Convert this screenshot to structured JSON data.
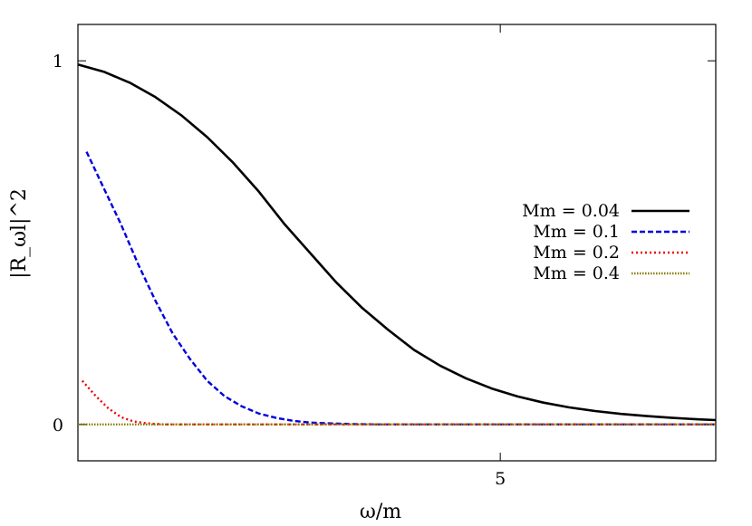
{
  "chart_data": {
    "type": "line",
    "xlabel": "ω/m",
    "ylabel": "|R_ωl|^2",
    "xlim": [
      0.1,
      7.5
    ],
    "ylim": [
      -0.1,
      1.1
    ],
    "xticks": [
      {
        "value": 5,
        "label": "5"
      }
    ],
    "yticks": [
      {
        "value": 0,
        "label": "0"
      },
      {
        "value": 1,
        "label": "1"
      }
    ],
    "grid": false,
    "legend_position": "right",
    "series": [
      {
        "name": "Mm = 0.04",
        "color": "#000000",
        "dash": "solid",
        "points": [
          [
            0.1,
            0.99
          ],
          [
            0.4,
            0.97
          ],
          [
            0.7,
            0.94
          ],
          [
            1.0,
            0.9
          ],
          [
            1.3,
            0.85
          ],
          [
            1.6,
            0.79
          ],
          [
            1.9,
            0.72
          ],
          [
            2.2,
            0.64
          ],
          [
            2.5,
            0.55
          ],
          [
            2.8,
            0.47
          ],
          [
            3.1,
            0.39
          ],
          [
            3.4,
            0.32
          ],
          [
            3.7,
            0.26
          ],
          [
            4.0,
            0.205
          ],
          [
            4.3,
            0.162
          ],
          [
            4.6,
            0.127
          ],
          [
            4.9,
            0.099
          ],
          [
            5.2,
            0.077
          ],
          [
            5.5,
            0.06
          ],
          [
            5.8,
            0.047
          ],
          [
            6.1,
            0.037
          ],
          [
            6.4,
            0.029
          ],
          [
            6.7,
            0.023
          ],
          [
            7.0,
            0.018
          ],
          [
            7.3,
            0.014
          ],
          [
            7.5,
            0.012
          ]
        ]
      },
      {
        "name": "Mm = 0.1",
        "color": "#0000dd",
        "dash": "dashed",
        "points": [
          [
            0.2,
            0.75
          ],
          [
            0.4,
            0.65
          ],
          [
            0.6,
            0.55
          ],
          [
            0.8,
            0.44
          ],
          [
            1.0,
            0.34
          ],
          [
            1.2,
            0.25
          ],
          [
            1.4,
            0.18
          ],
          [
            1.6,
            0.12
          ],
          [
            1.8,
            0.078
          ],
          [
            2.0,
            0.05
          ],
          [
            2.2,
            0.03
          ],
          [
            2.4,
            0.018
          ],
          [
            2.6,
            0.01
          ],
          [
            2.8,
            0.005
          ],
          [
            3.0,
            0.003
          ],
          [
            3.3,
            0.001
          ],
          [
            3.6,
            0.0
          ],
          [
            7.5,
            0.0
          ]
        ]
      },
      {
        "name": "Mm = 0.2",
        "color": "#ee0000",
        "dash": "dotted",
        "points": [
          [
            0.15,
            0.12
          ],
          [
            0.3,
            0.08
          ],
          [
            0.45,
            0.045
          ],
          [
            0.6,
            0.02
          ],
          [
            0.75,
            0.008
          ],
          [
            0.9,
            0.003
          ],
          [
            1.1,
            0.0
          ],
          [
            7.5,
            0.0
          ]
        ]
      },
      {
        "name": "Mm = 0.4",
        "color": "#8a7a00",
        "dash": "dotted",
        "points": [
          [
            0.1,
            0.0
          ],
          [
            7.5,
            0.0
          ]
        ]
      }
    ]
  }
}
